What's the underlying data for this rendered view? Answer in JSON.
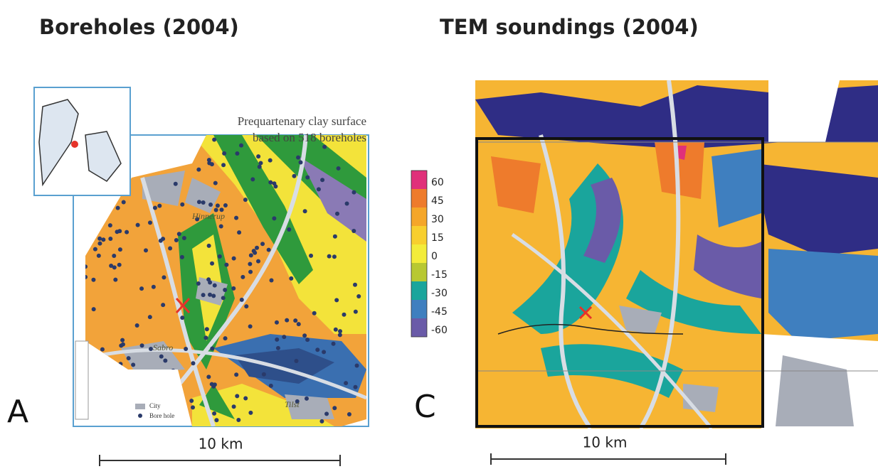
{
  "panels": [
    {
      "title": "Boreholes (2004)",
      "letter": "A",
      "scale_label": "10 km",
      "caption": [
        "Prequartenary clay surface",
        "based on 518 boreholes"
      ],
      "places": [
        "Hinnerup",
        "Sabro",
        "Tilst"
      ],
      "key": [
        "City",
        "Bore hole"
      ]
    },
    {
      "title": "TEM soundings (2004)",
      "letter": "C",
      "scale_label": "10 km",
      "legend": [
        {
          "label": 60,
          "color": "#e0307a"
        },
        {
          "label": 45,
          "color": "#ee7b2c"
        },
        {
          "label": 30,
          "color": "#f5a629"
        },
        {
          "label": 15,
          "color": "#f8cf2e"
        },
        {
          "label": 0,
          "color": "#f3ec3a"
        },
        {
          "label": -15,
          "color": "#b8c832"
        },
        {
          "label": -30,
          "color": "#1aa59c"
        },
        {
          "label": -45,
          "color": "#3f7fbf"
        },
        {
          "label": -60,
          "color": "#6a5ba8"
        }
      ]
    }
  ]
}
